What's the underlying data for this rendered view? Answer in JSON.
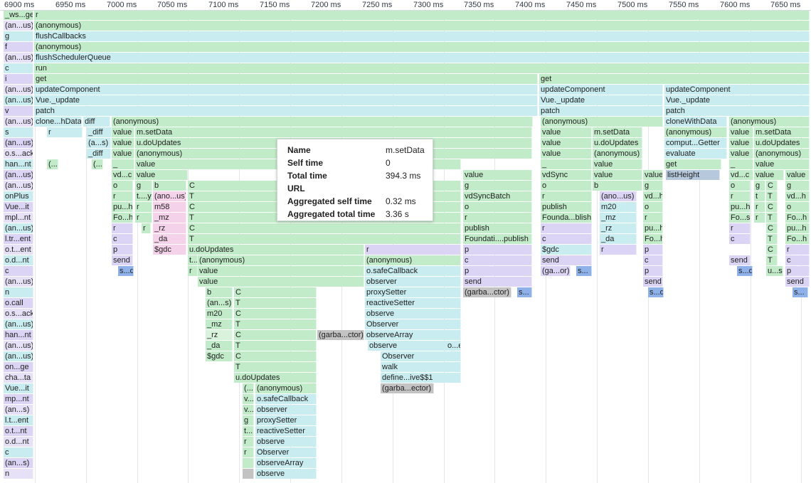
{
  "ruler": {
    "ticks": [
      "6900 ms",
      "6950 ms",
      "7000 ms",
      "7050 ms",
      "7100 ms",
      "7150 ms",
      "7200 ms",
      "7250 ms",
      "7300 ms",
      "7350 ms",
      "7400 ms",
      "7450 ms",
      "7500 ms",
      "7550 ms",
      "7600 ms",
      "7650 ms"
    ]
  },
  "tooltip": {
    "rows": [
      {
        "key": "Name",
        "value": "m.setData"
      },
      {
        "key": "Self time",
        "value": "0"
      },
      {
        "key": "Total time",
        "value": "394.3 ms"
      },
      {
        "key": "URL",
        "value": ""
      },
      {
        "key": "Aggregated self time",
        "value": "0.32 ms"
      },
      {
        "key": "Aggregated total time",
        "value": "3.36 s"
      }
    ]
  },
  "colors": {
    "green": "#c2ecc9",
    "teal": "#c8ecef",
    "purple": "#dcd4f5",
    "pink": "#f4d2ea",
    "blue": "#8fb1ea",
    "gray": "#c3c3c3",
    "steel": "#b6c8dc"
  },
  "left_column": [
    "_ws...ge",
    "(an...us)",
    "g",
    "f",
    "(an...us)",
    "c",
    "i",
    "(an...us)",
    "(an...us)",
    "v",
    "(an...us)",
    "s",
    "(an...us)",
    "o.s...ack",
    "han...nt",
    "(an...us)",
    "(an...us)",
    "onPlus",
    "Vue...it",
    "mpl...nt",
    "(an...us)",
    "l.tr...ent",
    "o.t...ent",
    "o.d...nt",
    "c",
    "(an...us)",
    "n",
    "o.call",
    "o.s...ack",
    "(an...us)",
    "han...nt",
    "(an...us)",
    "(an...us)",
    "on...ge",
    "cha...ta",
    "Vue...it",
    "mp...nt",
    "(an...s)",
    "l.t...ent",
    "o.t...nt",
    "o.d...nt",
    "c",
    "(an...s)",
    "n"
  ],
  "frames": [
    {
      "row": 0,
      "label": "r",
      "c": "green"
    },
    {
      "row": 1,
      "label": "(anonymous)",
      "c": "green"
    },
    {
      "row": 2,
      "label": "flushCallbacks",
      "c": "teal"
    },
    {
      "row": 3,
      "label": "(anonymous)",
      "c": "green"
    },
    {
      "row": 4,
      "label": "flushSchedulerQueue",
      "c": "teal"
    },
    {
      "row": 5,
      "label": "run",
      "c": "green"
    },
    {
      "row": 6,
      "label": "get",
      "c": "green"
    },
    {
      "row": 6,
      "label": "get",
      "c": "green"
    },
    {
      "row": 7,
      "label": "updateComponent",
      "c": "teal"
    },
    {
      "row": 7,
      "label": "updateComponent",
      "c": "teal"
    },
    {
      "row": 7,
      "label": "updateComponent",
      "c": "teal"
    },
    {
      "row": 8,
      "label": "Vue._update",
      "c": "teal"
    },
    {
      "row": 8,
      "label": "Vue._update",
      "c": "teal"
    },
    {
      "row": 8,
      "label": "Vue._update",
      "c": "teal"
    },
    {
      "row": 9,
      "label": "patch",
      "c": "teal"
    },
    {
      "row": 9,
      "label": "patch",
      "c": "teal"
    },
    {
      "row": 9,
      "label": "patch",
      "c": "teal"
    },
    {
      "row": 10,
      "label": "clone...hData",
      "c": "teal"
    },
    {
      "row": 10,
      "label": "diff",
      "c": "teal"
    },
    {
      "row": 10,
      "label": "(anonymous)",
      "c": "green"
    },
    {
      "row": 10,
      "label": "(anonymous)",
      "c": "green"
    },
    {
      "row": 10,
      "label": "cloneWithData",
      "c": "teal"
    },
    {
      "row": 10,
      "label": "(anonymous)",
      "c": "green"
    },
    {
      "row": 11,
      "label": "r",
      "c": "teal"
    },
    {
      "row": 11,
      "label": "_diff",
      "c": "teal"
    },
    {
      "row": 11,
      "label": "value",
      "c": "green"
    },
    {
      "row": 11,
      "label": "m.setData",
      "c": "green"
    },
    {
      "row": 11,
      "label": "value",
      "c": "green"
    },
    {
      "row": 11,
      "label": "m.setData",
      "c": "green"
    },
    {
      "row": 11,
      "label": "(anonymous)",
      "c": "green"
    },
    {
      "row": 11,
      "label": "value",
      "c": "green"
    },
    {
      "row": 11,
      "label": "m.setData",
      "c": "green"
    },
    {
      "row": 12,
      "label": "(a...s)",
      "c": "teal"
    },
    {
      "row": 12,
      "label": "value",
      "c": "green"
    },
    {
      "row": 12,
      "label": "u.doUpdates",
      "c": "green"
    },
    {
      "row": 12,
      "label": "value",
      "c": "green"
    },
    {
      "row": 12,
      "label": "u.doUpdates",
      "c": "green"
    },
    {
      "row": 12,
      "label": "comput...Getter",
      "c": "teal"
    },
    {
      "row": 12,
      "label": "value",
      "c": "green"
    },
    {
      "row": 12,
      "label": "u.doUpdates",
      "c": "green"
    },
    {
      "row": 13,
      "label": "_diff",
      "c": "teal"
    },
    {
      "row": 13,
      "label": "value",
      "c": "green"
    },
    {
      "row": 13,
      "label": "(anonymous)",
      "c": "green"
    },
    {
      "row": 13,
      "label": "value",
      "c": "green"
    },
    {
      "row": 13,
      "label": "(anonymous)",
      "c": "green"
    },
    {
      "row": 13,
      "label": "evaluate",
      "c": "teal"
    },
    {
      "row": 13,
      "label": "value",
      "c": "green"
    },
    {
      "row": 13,
      "label": "(anonymous)",
      "c": "green"
    },
    {
      "row": 14,
      "label": "(...",
      "c": "green"
    },
    {
      "row": 14,
      "label": "(...)",
      "c": "green"
    },
    {
      "row": 14,
      "label": "_",
      "c": "green"
    },
    {
      "row": 14,
      "label": "value",
      "c": "green"
    },
    {
      "row": 14,
      "label": "_",
      "c": "green"
    },
    {
      "row": 14,
      "label": "value",
      "c": "green"
    },
    {
      "row": 14,
      "label": "get",
      "c": "green"
    },
    {
      "row": 14,
      "label": "_",
      "c": "green"
    },
    {
      "row": 14,
      "label": "value",
      "c": "green"
    },
    {
      "row": 15,
      "label": "vd...c",
      "c": "green"
    },
    {
      "row": 15,
      "label": "value",
      "c": "green"
    },
    {
      "row": 15,
      "label": "value",
      "c": "green"
    },
    {
      "row": 15,
      "label": "vdSync",
      "c": "green"
    },
    {
      "row": 15,
      "label": "value",
      "c": "green"
    },
    {
      "row": 15,
      "label": "value",
      "c": "green"
    },
    {
      "row": 15,
      "label": "listHeight",
      "c": "steel"
    },
    {
      "row": 15,
      "label": "vd...c",
      "c": "green"
    },
    {
      "row": 15,
      "label": "value",
      "c": "green"
    },
    {
      "row": 15,
      "label": "value",
      "c": "green"
    },
    {
      "row": 16,
      "label": "o",
      "c": "green"
    },
    {
      "row": 16,
      "label": "g",
      "c": "green"
    },
    {
      "row": 16,
      "label": "b",
      "c": "green"
    },
    {
      "row": 16,
      "label": "C",
      "c": "green"
    },
    {
      "row": 16,
      "label": "g",
      "c": "green"
    },
    {
      "row": 16,
      "label": "o",
      "c": "green"
    },
    {
      "row": 16,
      "label": "b",
      "c": "green"
    },
    {
      "row": 16,
      "label": "g",
      "c": "green"
    },
    {
      "row": 16,
      "label": "o",
      "c": "green"
    },
    {
      "row": 16,
      "label": "g",
      "c": "green"
    },
    {
      "row": 16,
      "label": "C",
      "c": "green"
    },
    {
      "row": 16,
      "label": "g",
      "c": "green"
    },
    {
      "row": 17,
      "label": "r",
      "c": "green"
    },
    {
      "row": 17,
      "label": "t....y",
      "c": "green"
    },
    {
      "row": 17,
      "label": "(ano...us)",
      "c": "pink"
    },
    {
      "row": 17,
      "label": "T",
      "c": "green"
    },
    {
      "row": 17,
      "label": "vdSyncBatch",
      "c": "green"
    },
    {
      "row": 17,
      "label": "r",
      "c": "green"
    },
    {
      "row": 17,
      "label": "(ano...us)",
      "c": "purple"
    },
    {
      "row": 17,
      "label": "vd...h",
      "c": "green"
    },
    {
      "row": 17,
      "label": "r",
      "c": "green"
    },
    {
      "row": 17,
      "label": "t",
      "c": "green"
    },
    {
      "row": 17,
      "label": "T",
      "c": "green"
    },
    {
      "row": 17,
      "label": "vd...h",
      "c": "green"
    },
    {
      "row": 18,
      "label": "pu...h",
      "c": "green"
    },
    {
      "row": 18,
      "label": "r",
      "c": "green"
    },
    {
      "row": 18,
      "label": "m58",
      "c": "pink"
    },
    {
      "row": 18,
      "label": "C",
      "c": "green"
    },
    {
      "row": 18,
      "label": "o",
      "c": "green"
    },
    {
      "row": 18,
      "label": "publish",
      "c": "green"
    },
    {
      "row": 18,
      "label": "m20",
      "c": "teal"
    },
    {
      "row": 18,
      "label": "o",
      "c": "green"
    },
    {
      "row": 18,
      "label": "pu...h",
      "c": "green"
    },
    {
      "row": 18,
      "label": "r",
      "c": "green"
    },
    {
      "row": 18,
      "label": "C",
      "c": "green"
    },
    {
      "row": 18,
      "label": "o",
      "c": "green"
    },
    {
      "row": 19,
      "label": "Fo...h",
      "c": "green"
    },
    {
      "row": 19,
      "label": "r",
      "c": "green"
    },
    {
      "row": 19,
      "label": "_mz",
      "c": "pink"
    },
    {
      "row": 19,
      "label": "T",
      "c": "green"
    },
    {
      "row": 19,
      "label": "r",
      "c": "green"
    },
    {
      "row": 19,
      "label": "Founda...blish",
      "c": "green"
    },
    {
      "row": 19,
      "label": "_mz",
      "c": "teal"
    },
    {
      "row": 19,
      "label": "r",
      "c": "green"
    },
    {
      "row": 19,
      "label": "Fo...sh",
      "c": "green"
    },
    {
      "row": 19,
      "label": "r",
      "c": "green"
    },
    {
      "row": 19,
      "label": "T",
      "c": "green"
    },
    {
      "row": 19,
      "label": "Fo...h",
      "c": "green"
    },
    {
      "row": 20,
      "label": "r",
      "c": "purple"
    },
    {
      "row": 20,
      "label": "r",
      "c": "green"
    },
    {
      "row": 20,
      "label": "_rz",
      "c": "pink"
    },
    {
      "row": 20,
      "label": "C",
      "c": "green"
    },
    {
      "row": 20,
      "label": "publish",
      "c": "green"
    },
    {
      "row": 20,
      "label": "r",
      "c": "purple"
    },
    {
      "row": 20,
      "label": "_rz",
      "c": "teal"
    },
    {
      "row": 20,
      "label": "pu...h",
      "c": "green"
    },
    {
      "row": 20,
      "label": "r",
      "c": "purple"
    },
    {
      "row": 20,
      "label": "C",
      "c": "green"
    },
    {
      "row": 20,
      "label": "pu...h",
      "c": "green"
    },
    {
      "row": 21,
      "label": "c",
      "c": "purple"
    },
    {
      "row": 21,
      "label": "_da",
      "c": "pink"
    },
    {
      "row": 21,
      "label": "T",
      "c": "green"
    },
    {
      "row": 21,
      "label": "Foundati....publish",
      "c": "green"
    },
    {
      "row": 21,
      "label": "c",
      "c": "purple"
    },
    {
      "row": 21,
      "label": "_da",
      "c": "teal"
    },
    {
      "row": 21,
      "label": "Fo...h",
      "c": "green"
    },
    {
      "row": 21,
      "label": "c",
      "c": "purple"
    },
    {
      "row": 21,
      "label": "T",
      "c": "green"
    },
    {
      "row": 21,
      "label": "Fo...h",
      "c": "green"
    },
    {
      "row": 22,
      "label": "p",
      "c": "purple"
    },
    {
      "row": 22,
      "label": "$gdc",
      "c": "pink"
    },
    {
      "row": 22,
      "label": "u.doUpdates",
      "c": "green"
    },
    {
      "row": 22,
      "label": "r",
      "c": "purple"
    },
    {
      "row": 22,
      "label": "p",
      "c": "purple"
    },
    {
      "row": 22,
      "label": "$gdc",
      "c": "teal"
    },
    {
      "row": 22,
      "label": "r",
      "c": "purple"
    },
    {
      "row": 22,
      "label": "p",
      "c": "purple"
    },
    {
      "row": 22,
      "label": "C",
      "c": "green"
    },
    {
      "row": 22,
      "label": "r",
      "c": "purple"
    },
    {
      "row": 23,
      "label": "send",
      "c": "purple"
    },
    {
      "row": 23,
      "label": "t...",
      "c": "green"
    },
    {
      "row": 23,
      "label": "(anonymous)",
      "c": "green"
    },
    {
      "row": 23,
      "label": "(anonymous)",
      "c": "green"
    },
    {
      "row": 23,
      "label": "c",
      "c": "purple"
    },
    {
      "row": 23,
      "label": "send",
      "c": "purple"
    },
    {
      "row": 23,
      "label": "c",
      "c": "purple"
    },
    {
      "row": 23,
      "label": "send",
      "c": "purple"
    },
    {
      "row": 23,
      "label": "T",
      "c": "green"
    },
    {
      "row": 23,
      "label": "c",
      "c": "purple"
    },
    {
      "row": 24,
      "label": "s...d",
      "c": "blue"
    },
    {
      "row": 24,
      "label": "r",
      "c": "green"
    },
    {
      "row": 24,
      "label": "value",
      "c": "green"
    },
    {
      "row": 24,
      "label": "o.safeCallback",
      "c": "teal"
    },
    {
      "row": 24,
      "label": "p",
      "c": "purple"
    },
    {
      "row": 24,
      "label": "(ga...or)",
      "c": "purple"
    },
    {
      "row": 24,
      "label": "s...",
      "c": "blue"
    },
    {
      "row": 24,
      "label": "p",
      "c": "purple"
    },
    {
      "row": 24,
      "label": "s...d",
      "c": "blue"
    },
    {
      "row": 24,
      "label": "u...s",
      "c": "green"
    },
    {
      "row": 24,
      "label": "p",
      "c": "purple"
    },
    {
      "row": 25,
      "label": "value",
      "c": "green"
    },
    {
      "row": 25,
      "label": "observer",
      "c": "teal"
    },
    {
      "row": 25,
      "label": "send",
      "c": "purple"
    },
    {
      "row": 25,
      "label": "send",
      "c": "purple"
    },
    {
      "row": 25,
      "label": "send",
      "c": "purple"
    },
    {
      "row": 26,
      "label": "b",
      "c": "green"
    },
    {
      "row": 26,
      "label": "C",
      "c": "green"
    },
    {
      "row": 26,
      "label": "proxySetter",
      "c": "teal"
    },
    {
      "row": 26,
      "label": "(garba...ctor)",
      "c": "gray"
    },
    {
      "row": 26,
      "label": "s...",
      "c": "blue"
    },
    {
      "row": 26,
      "label": "s...d",
      "c": "blue"
    },
    {
      "row": 26,
      "label": "s...",
      "c": "blue"
    },
    {
      "row": 27,
      "label": "(an...s)",
      "c": "green"
    },
    {
      "row": 27,
      "label": "T",
      "c": "green"
    },
    {
      "row": 27,
      "label": "reactiveSetter",
      "c": "teal"
    },
    {
      "row": 28,
      "label": "m20",
      "c": "green"
    },
    {
      "row": 28,
      "label": "C",
      "c": "green"
    },
    {
      "row": 28,
      "label": "observe",
      "c": "teal"
    },
    {
      "row": 29,
      "label": "_mz",
      "c": "green"
    },
    {
      "row": 29,
      "label": "T",
      "c": "green"
    },
    {
      "row": 29,
      "label": "Observer",
      "c": "teal"
    },
    {
      "row": 30,
      "label": "_rz",
      "c": "mint"
    },
    {
      "row": 30,
      "label": "C",
      "c": "green"
    },
    {
      "row": 30,
      "label": "(garba...ctor)",
      "c": "gray"
    },
    {
      "row": 30,
      "label": "observeArray",
      "c": "teal"
    },
    {
      "row": 31,
      "label": "_da",
      "c": "green"
    },
    {
      "row": 31,
      "label": "T",
      "c": "green"
    },
    {
      "row": 31,
      "label": "observe",
      "c": "teal"
    },
    {
      "row": 31,
      "label": "o...e",
      "c": "teal"
    },
    {
      "row": 32,
      "label": "$gdc",
      "c": "green"
    },
    {
      "row": 32,
      "label": "C",
      "c": "green"
    },
    {
      "row": 32,
      "label": "Observer",
      "c": "teal"
    },
    {
      "row": 33,
      "label": "T",
      "c": "green"
    },
    {
      "row": 33,
      "label": "walk",
      "c": "teal"
    },
    {
      "row": 34,
      "label": "u.doUpdates",
      "c": "green"
    },
    {
      "row": 34,
      "label": "define...ive$$1",
      "c": "teal"
    },
    {
      "row": 35,
      "label": "(...)",
      "c": "green"
    },
    {
      "row": 35,
      "label": "(anonymous)",
      "c": "green"
    },
    {
      "row": 35,
      "label": "(garba...ector)",
      "c": "gray"
    },
    {
      "row": 36,
      "label": "v...",
      "c": "green"
    },
    {
      "row": 36,
      "label": "o.safeCallback",
      "c": "teal"
    },
    {
      "row": 37,
      "label": "v...",
      "c": "green"
    },
    {
      "row": 37,
      "label": "observer",
      "c": "teal"
    },
    {
      "row": 38,
      "label": "g",
      "c": "green"
    },
    {
      "row": 38,
      "label": "proxySetter",
      "c": "teal"
    },
    {
      "row": 39,
      "label": "t...",
      "c": "green"
    },
    {
      "row": 39,
      "label": "reactiveSetter",
      "c": "teal"
    },
    {
      "row": 40,
      "label": "r",
      "c": "green"
    },
    {
      "row": 40,
      "label": "observe",
      "c": "teal"
    },
    {
      "row": 41,
      "label": "r",
      "c": "green"
    },
    {
      "row": 41,
      "label": "Observer",
      "c": "teal"
    },
    {
      "row": 42,
      "label": "",
      "c": "green"
    },
    {
      "row": 42,
      "label": "observeArray",
      "c": "teal"
    },
    {
      "row": 43,
      "label": "",
      "c": "gray"
    },
    {
      "row": 43,
      "label": "observe",
      "c": "teal"
    }
  ]
}
